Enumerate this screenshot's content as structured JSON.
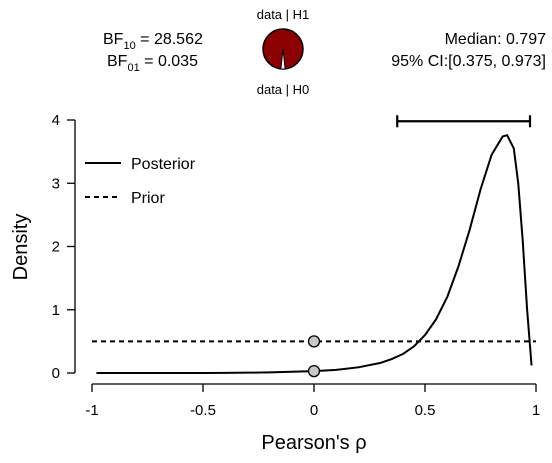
{
  "bf": {
    "bf10_prefix": "BF",
    "bf10_sub": "10",
    "bf10_value": " = 28.562",
    "bf01_prefix": "BF",
    "bf01_sub": "01",
    "bf01_value": " = 0.035"
  },
  "pie": {
    "top_label": "data | H1",
    "bottom_label": "data | H0",
    "h1_fraction": 0.966,
    "h1_color": "#8b0000",
    "h0_color": "#ffffff"
  },
  "summary": {
    "median_text": "Median: 0.797",
    "ci_text": "95% CI:[0.375, 0.973]"
  },
  "chart_data": {
    "type": "line",
    "xlabel": "Pearson's ρ",
    "ylabel": "Density",
    "xlim": [
      -1,
      1
    ],
    "ylim": [
      0,
      4
    ],
    "x_ticks": [
      -1,
      -0.5,
      0,
      0.5,
      1
    ],
    "x_tick_labels": [
      "-1",
      "-0.5",
      "0",
      "0.5",
      "1"
    ],
    "y_ticks": [
      0,
      1,
      2,
      3,
      4
    ],
    "y_tick_labels": [
      "0",
      "1",
      "2",
      "3",
      "4"
    ],
    "grid": false,
    "legend_position": "top-left",
    "series": [
      {
        "name": "Posterior",
        "style": "solid",
        "x": [
          -0.98,
          -0.9,
          -0.8,
          -0.7,
          -0.6,
          -0.5,
          -0.4,
          -0.3,
          -0.2,
          -0.1,
          0.0,
          0.1,
          0.2,
          0.3,
          0.35,
          0.4,
          0.45,
          0.5,
          0.55,
          0.6,
          0.65,
          0.7,
          0.75,
          0.8,
          0.85,
          0.87,
          0.9,
          0.92,
          0.94,
          0.96,
          0.98
        ],
        "y": [
          0.0,
          0.0,
          0.0,
          0.0,
          0.0,
          0.0,
          0.002,
          0.005,
          0.01,
          0.02,
          0.03,
          0.05,
          0.09,
          0.16,
          0.22,
          0.3,
          0.42,
          0.6,
          0.85,
          1.2,
          1.68,
          2.25,
          2.9,
          3.45,
          3.74,
          3.76,
          3.55,
          3.0,
          2.1,
          1.0,
          0.12
        ]
      },
      {
        "name": "Prior",
        "style": "dashed",
        "x": [
          -1,
          1
        ],
        "y": [
          0.5,
          0.5
        ]
      }
    ],
    "points": [
      {
        "x": 0,
        "y": 0.5,
        "color": "#c8c8c8"
      },
      {
        "x": 0,
        "y": 0.03,
        "color": "#c8c8c8"
      }
    ],
    "credible_interval": {
      "lower": 0.375,
      "upper": 0.973,
      "y": 3.98
    }
  }
}
